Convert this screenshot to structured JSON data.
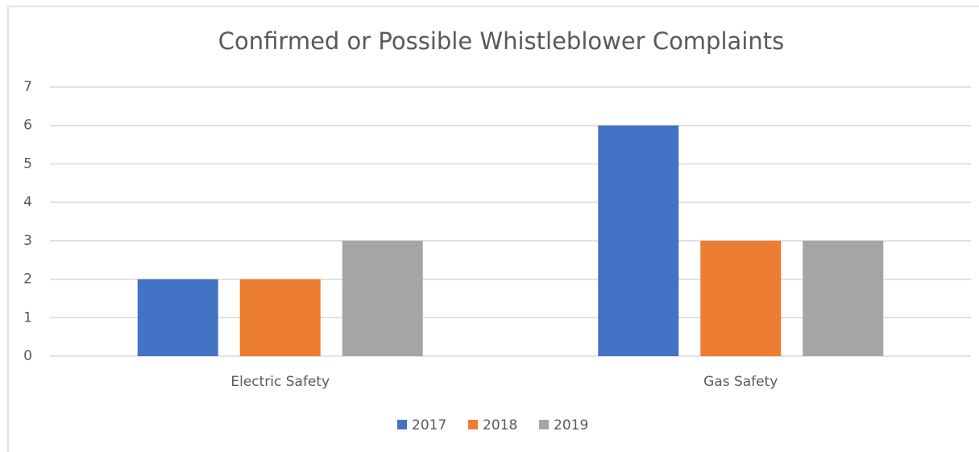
{
  "chart_data": {
    "type": "bar",
    "title": "Confirmed or Possible Whistleblower Complaints",
    "categories": [
      "Electric Safety",
      "Gas Safety"
    ],
    "series": [
      {
        "name": "2017",
        "color": "#4472c4",
        "values": [
          2,
          6
        ]
      },
      {
        "name": "2018",
        "color": "#ed7d31",
        "values": [
          2,
          3
        ]
      },
      {
        "name": "2019",
        "color": "#a5a5a5",
        "values": [
          3,
          3
        ]
      }
    ],
    "ylim": [
      0,
      7
    ],
    "yticks": [
      0,
      1,
      2,
      3,
      4,
      5,
      6,
      7
    ],
    "grid": true,
    "legend": "bottom"
  }
}
